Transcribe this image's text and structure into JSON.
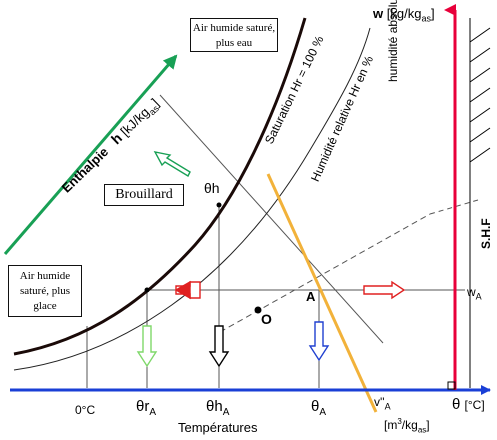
{
  "labels": {
    "w_axis": "w",
    "w_unit": "[kg/kg",
    "w_unit_sub": "as",
    "w_unit_close": "]",
    "humidite_absolue": "humidité absolue",
    "shf": "S.H.F",
    "theta_axis": "θ",
    "theta_unit": "[°C]",
    "temperatures": "Températures",
    "zero_c": "0°C",
    "theta_rA": "θr",
    "theta_hA": "θh",
    "theta_A": "θ",
    "sub_A": "A",
    "v_A": "v''",
    "volume_unit": "[m",
    "volume_unit_sup": "3",
    "volume_unit_rest": "/kg",
    "volume_unit_sub": "as",
    "volume_unit_close": "]",
    "w_A": "w",
    "point_A": "A",
    "point_O": "O",
    "theta_h": "θh",
    "enthalpie": "Enthalpie",
    "h_letter": "h",
    "h_unit": "[kJ/kg",
    "h_unit_sub": "as",
    "h_unit_close": "]",
    "saturation": "Saturation Hr = 100 %",
    "humidite_relative": "Humidité relative Hr en %",
    "brouillard": "Brouillard",
    "air_sature_eau": "Air humide saturé, plus eau",
    "air_sature_glace": "Air humide saturé, plus glace"
  },
  "colors": {
    "theta_axis": "#1a3fd6",
    "w_axis": "#e8003a",
    "enthalpy": "#18a055",
    "volume_line": "#f2b23a",
    "arrow_red": "#e02020",
    "arrow_green": "#7fd86a",
    "arrow_blue": "#2040d0",
    "curve": "#1a0a08"
  }
}
